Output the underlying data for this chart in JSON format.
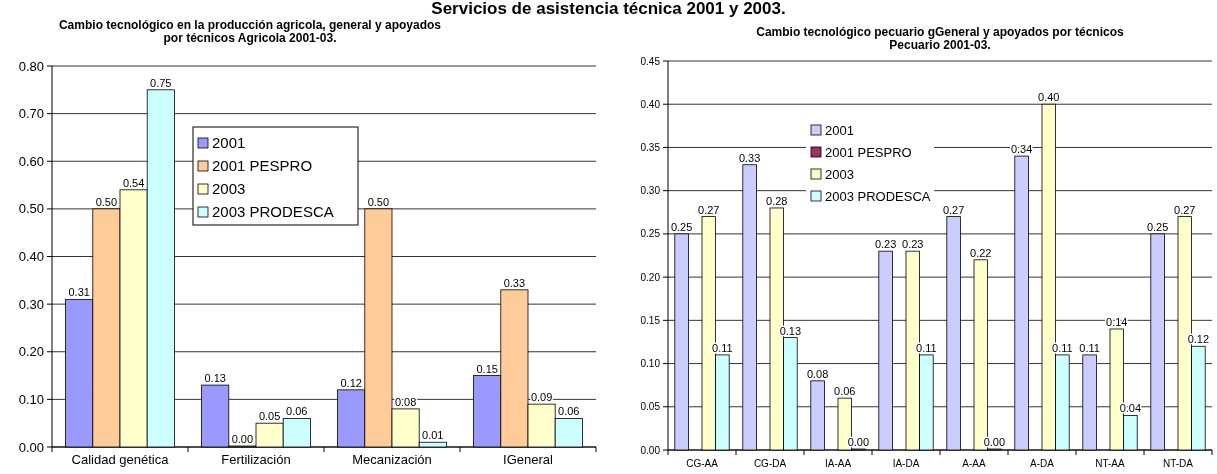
{
  "chart_data": [
    {
      "type": "bar",
      "title": "Cambio tecnológico en la producción agricola, general y apoyados\npor técnicos Agricola 2001-03.",
      "annotations": [
        "Servicios de asistencia técnica  2001 y 2003."
      ],
      "categories": [
        "Calidad genética",
        "Fertilización",
        "Mecanización",
        "IGeneral"
      ],
      "series": [
        {
          "name": "2001",
          "color": "#9999ff",
          "values": [
            0.31,
            0.13,
            0.12,
            0.15
          ],
          "value_labels": [
            "0.31",
            "0.13",
            "0.12",
            "0.15"
          ]
        },
        {
          "name": "2001 PESPRO",
          "color": "#ffcc99",
          "values": [
            0.5,
            0,
            0.5,
            0.33
          ],
          "value_labels": [
            "0.50",
            "0.00",
            "0.50",
            "0.33"
          ]
        },
        {
          "name": "2003",
          "color": "#ffffcc",
          "values": [
            0.54,
            0.05,
            0.08,
            0.09
          ],
          "value_labels": [
            "0.54",
            "0.05",
            "0.08",
            "0.09"
          ]
        },
        {
          "name": "2003 PRODESCA",
          "color": "#ccffff",
          "values": [
            0.75,
            0.06,
            0.01,
            0.06
          ],
          "value_labels": [
            "0.75",
            "0.06",
            "0.01",
            "0.06"
          ]
        }
      ],
      "ylim": [
        0,
        0.8
      ],
      "yticks": [
        {
          "value": 0,
          "label": "0.00"
        },
        {
          "value": 0.1,
          "label": "0.10"
        },
        {
          "value": 0.2,
          "label": "0.20"
        },
        {
          "value": 0.3,
          "label": "0.30"
        },
        {
          "value": 0.4,
          "label": "0.40"
        },
        {
          "value": 0.5,
          "label": "0.50"
        },
        {
          "value": 0.6,
          "label": "0.60"
        },
        {
          "value": 0.7,
          "label": "0.70"
        },
        {
          "value": 0.8,
          "label": "0.80"
        }
      ],
      "grid": "y",
      "legend": "top"
    },
    {
      "type": "bar",
      "title": "Cambio tecnológico pecuario  gGeneral y apoyados por técnicos\nPecuario 2001-03.",
      "categories": [
        "CG-AA",
        "CG-DA",
        "IA-AA",
        "IA-DA",
        "A-AA",
        "A-DA",
        "NT-AA",
        "NT-DA"
      ],
      "series": [
        {
          "name": "2001",
          "color": "#ccccff",
          "values": [
            0.25,
            0.33,
            0.08,
            0.23,
            0.27,
            0.34,
            0.11,
            0.25
          ],
          "value_labels": [
            "0.25",
            "0.33",
            "0.08",
            "0.23",
            "0.27",
            "0.34",
            "0.11",
            "0.25"
          ]
        },
        {
          "name": "2001 PESPRO",
          "color": "#993366",
          "values": [
            null,
            null,
            null,
            null,
            null,
            null,
            null,
            null
          ]
        },
        {
          "name": "2003",
          "color": "#ffffcc",
          "values": [
            0.27,
            0.28,
            0.06,
            0.23,
            0.22,
            0.4,
            0.14,
            0.27
          ],
          "value_labels": [
            "0.27",
            "0.28",
            "0.06",
            "0.23",
            "0.22",
            "0.40",
            "0.14",
            "0.27"
          ]
        },
        {
          "name": "2003 PRODESCA",
          "color": "#ccffff",
          "values": [
            0.11,
            0.13,
            0,
            0.11,
            0,
            0.11,
            0.04,
            0.12
          ],
          "value_labels": [
            "0.11",
            "0.13",
            "0.00",
            "0.11",
            "0.00",
            "0.11",
            "0.04",
            "0.12"
          ]
        }
      ],
      "ylim": [
        0,
        0.45
      ],
      "yticks": [
        {
          "value": 0,
          "label": "0.00"
        },
        {
          "value": 0.05,
          "label": "0.05"
        },
        {
          "value": 0.1,
          "label": "0.10"
        },
        {
          "value": 0.15,
          "label": "0.15"
        },
        {
          "value": 0.2,
          "label": "0.20"
        },
        {
          "value": 0.25,
          "label": "0.25"
        },
        {
          "value": 0.3,
          "label": "0.30"
        },
        {
          "value": 0.35,
          "label": "0.35"
        },
        {
          "value": 0.4,
          "label": "0.40"
        },
        {
          "value": 0.45,
          "label": "0.45"
        }
      ],
      "grid": "y",
      "legend": "top"
    }
  ]
}
